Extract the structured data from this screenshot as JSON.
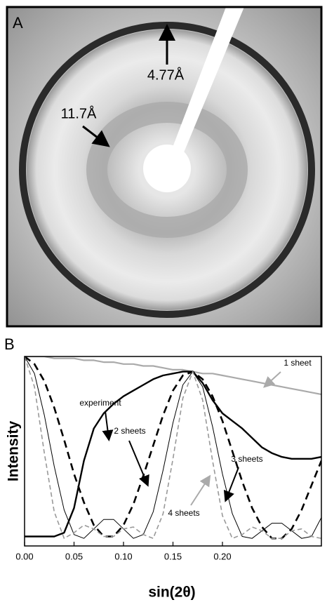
{
  "panel_a": {
    "panel_label": "A",
    "arrow_labels": [
      "4.77Å",
      "11.7Å"
    ]
  },
  "chart_data": {
    "type": "line",
    "panel_label": "B",
    "x_label": "sin(2θ)",
    "y_label": "Intensity",
    "x": [
      0,
      0.01,
      0.02,
      0.03,
      0.04,
      0.05,
      0.06,
      0.07,
      0.08,
      0.09,
      0.1,
      0.11,
      0.12,
      0.13,
      0.14,
      0.15,
      0.16,
      0.17,
      0.18,
      0.19,
      0.2,
      0.21,
      0.22,
      0.23,
      0.24,
      0.25,
      0.26,
      0.27,
      0.28,
      0.29,
      0.3
    ],
    "xlim": [
      0,
      0.3
    ],
    "xticks": [
      {
        "value": 0,
        "label": "0.00"
      },
      0.05,
      {
        "value": 0.1,
        "label": "0.10"
      },
      0.15,
      {
        "value": 0.2,
        "label": "0.20"
      }
    ],
    "ylim": [
      0,
      1
    ],
    "series": [
      {
        "name": "1 sheet",
        "color": "#aaaaaa",
        "dash": false,
        "width": 2.2,
        "values": [
          1.0,
          1.0,
          1.0,
          0.99,
          0.99,
          0.99,
          0.98,
          0.98,
          0.97,
          0.97,
          0.96,
          0.96,
          0.95,
          0.95,
          0.94,
          0.93,
          0.93,
          0.92,
          0.91,
          0.91,
          0.9,
          0.89,
          0.88,
          0.87,
          0.86,
          0.85,
          0.84,
          0.83,
          0.82,
          0.81,
          0.8
        ]
      },
      {
        "name": "experiment",
        "color": "#000000",
        "dash": false,
        "width": 2.4,
        "values": [
          0.05,
          0.05,
          0.05,
          0.05,
          0.07,
          0.2,
          0.45,
          0.62,
          0.7,
          0.75,
          0.79,
          0.82,
          0.85,
          0.88,
          0.9,
          0.91,
          0.92,
          0.92,
          0.86,
          0.77,
          0.7,
          0.66,
          0.62,
          0.57,
          0.52,
          0.49,
          0.47,
          0.46,
          0.46,
          0.46,
          0.47
        ]
      },
      {
        "name": "2 sheets",
        "color": "#000000",
        "dash": true,
        "width": 2.6,
        "values": [
          1.0,
          0.96,
          0.87,
          0.73,
          0.56,
          0.38,
          0.23,
          0.11,
          0.05,
          0.05,
          0.11,
          0.22,
          0.37,
          0.53,
          0.69,
          0.82,
          0.9,
          0.92,
          0.88,
          0.79,
          0.66,
          0.5,
          0.34,
          0.2,
          0.1,
          0.04,
          0.04,
          0.09,
          0.19,
          0.32,
          0.45
        ]
      },
      {
        "name": "3 sheets",
        "color": "#000000",
        "dash": false,
        "width": 1,
        "values": [
          1.0,
          0.91,
          0.69,
          0.42,
          0.19,
          0.06,
          0.04,
          0.09,
          0.14,
          0.14,
          0.09,
          0.04,
          0.06,
          0.18,
          0.4,
          0.65,
          0.85,
          0.92,
          0.84,
          0.63,
          0.38,
          0.17,
          0.05,
          0.04,
          0.08,
          0.12,
          0.12,
          0.08,
          0.04,
          0.05,
          0.15
        ]
      },
      {
        "name": "4 sheets",
        "color": "#999999",
        "dash": true,
        "width": 1.6,
        "values": [
          1.0,
          0.84,
          0.49,
          0.18,
          0.04,
          0.07,
          0.11,
          0.09,
          0.05,
          0.05,
          0.09,
          0.1,
          0.06,
          0.04,
          0.17,
          0.46,
          0.78,
          0.92,
          0.77,
          0.45,
          0.16,
          0.04,
          0.06,
          0.1,
          0.08,
          0.04,
          0.04,
          0.08,
          0.09,
          0.05,
          0.04
        ]
      }
    ]
  }
}
